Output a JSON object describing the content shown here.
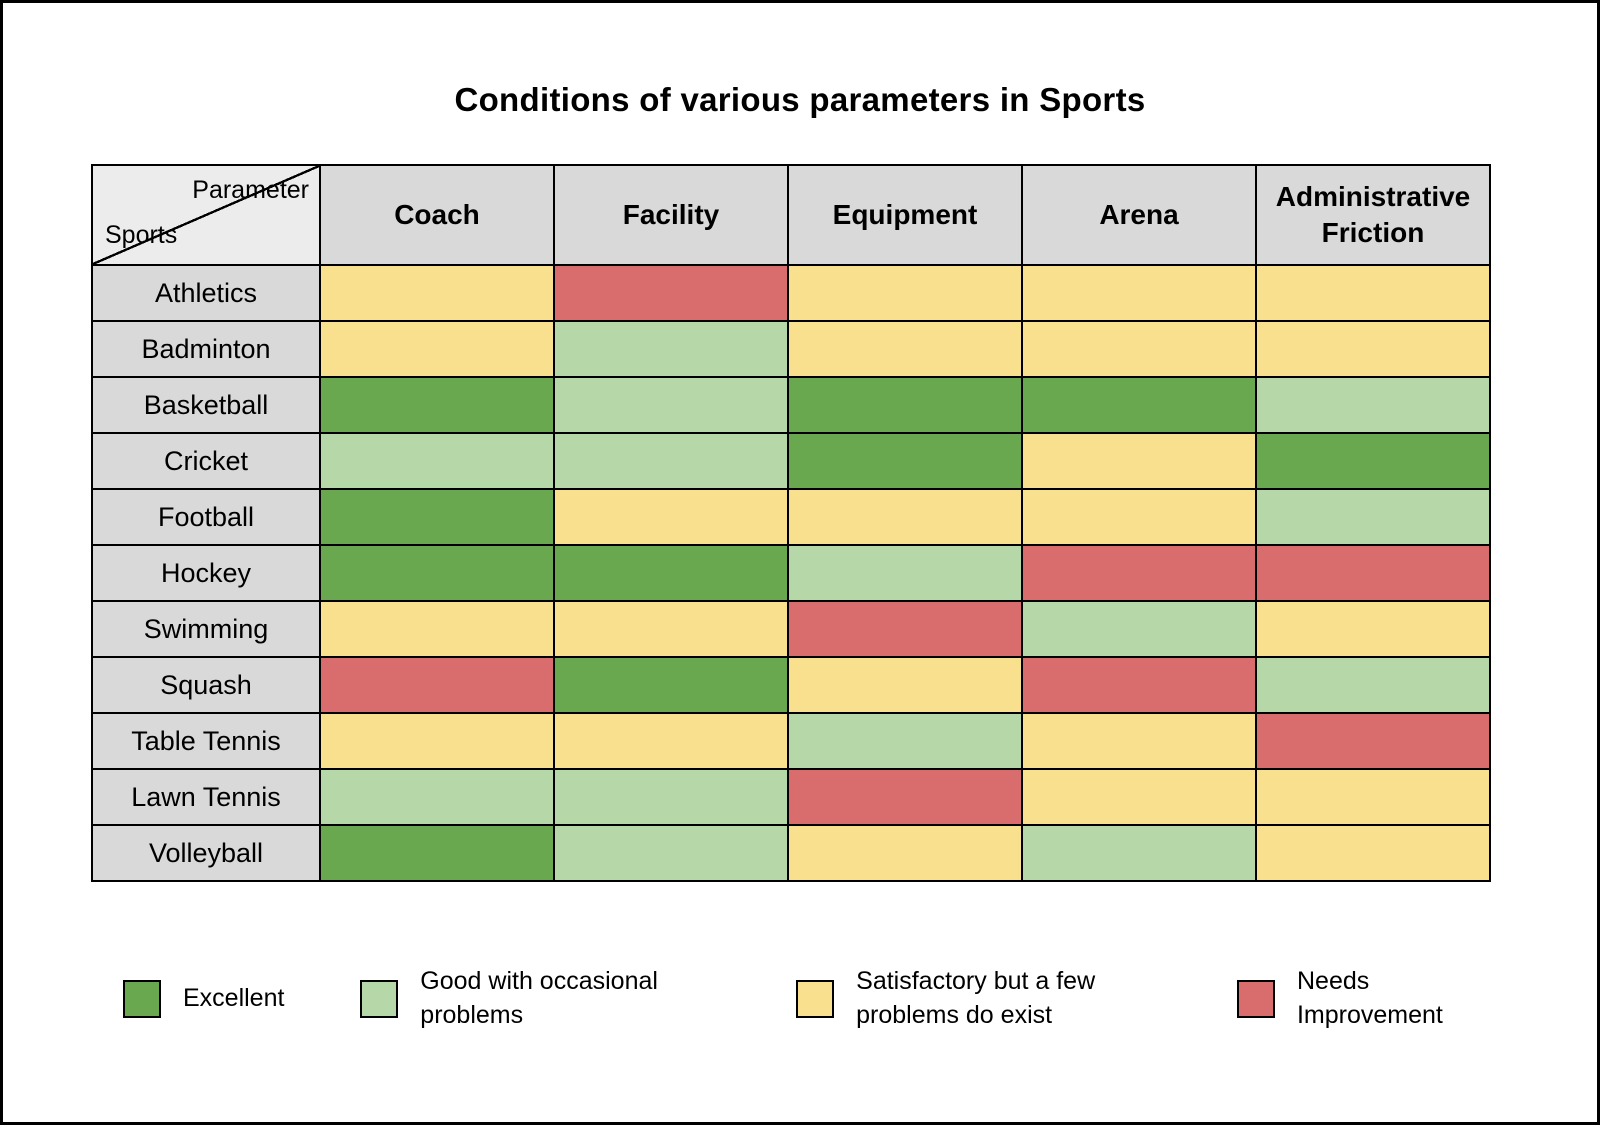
{
  "title": "Conditions of various parameters in Sports",
  "corner": {
    "top_label": "Parameter",
    "bottom_label": "Sports"
  },
  "colors": {
    "excellent": "#6aa84f",
    "good": "#b6d7a8",
    "satisfactory": "#f9e08e",
    "needs_improvement": "#d96c6c",
    "header_bg": "#d9d9d9",
    "border": "#000000"
  },
  "chart_data": {
    "type": "heatmap",
    "title": "Conditions of various parameters in Sports",
    "columns": [
      "Coach",
      "Facility",
      "Equipment",
      "Arena",
      "Administrative Friction"
    ],
    "rows": [
      {
        "sport": "Athletics",
        "values": [
          "satisfactory",
          "needs_improvement",
          "satisfactory",
          "satisfactory",
          "satisfactory"
        ]
      },
      {
        "sport": "Badminton",
        "values": [
          "satisfactory",
          "good",
          "satisfactory",
          "satisfactory",
          "satisfactory"
        ]
      },
      {
        "sport": "Basketball",
        "values": [
          "excellent",
          "good",
          "excellent",
          "excellent",
          "good"
        ]
      },
      {
        "sport": "Cricket",
        "values": [
          "good",
          "good",
          "excellent",
          "satisfactory",
          "excellent"
        ]
      },
      {
        "sport": "Football",
        "values": [
          "excellent",
          "satisfactory",
          "satisfactory",
          "satisfactory",
          "good"
        ]
      },
      {
        "sport": "Hockey",
        "values": [
          "excellent",
          "excellent",
          "good",
          "needs_improvement",
          "needs_improvement"
        ]
      },
      {
        "sport": "Swimming",
        "values": [
          "satisfactory",
          "satisfactory",
          "needs_improvement",
          "good",
          "satisfactory"
        ]
      },
      {
        "sport": "Squash",
        "values": [
          "needs_improvement",
          "excellent",
          "satisfactory",
          "needs_improvement",
          "good"
        ]
      },
      {
        "sport": "Table Tennis",
        "values": [
          "satisfactory",
          "satisfactory",
          "good",
          "satisfactory",
          "needs_improvement"
        ]
      },
      {
        "sport": "Lawn Tennis",
        "values": [
          "good",
          "good",
          "needs_improvement",
          "satisfactory",
          "satisfactory"
        ]
      },
      {
        "sport": "Volleyball",
        "values": [
          "excellent",
          "good",
          "satisfactory",
          "good",
          "satisfactory"
        ]
      }
    ],
    "value_scale": {
      "excellent": "Excellent",
      "good": "Good with occasional problems",
      "satisfactory": "Satisfactory but a few problems do exist",
      "needs_improvement": "Needs Improvement"
    },
    "legend_position": "bottom"
  },
  "legend": [
    {
      "key": "excellent",
      "label": "Excellent"
    },
    {
      "key": "good",
      "label": "Good with occasional problems"
    },
    {
      "key": "satisfactory",
      "label": "Satisfactory but a few problems do exist"
    },
    {
      "key": "needs_improvement",
      "label": "Needs Improvement"
    }
  ]
}
